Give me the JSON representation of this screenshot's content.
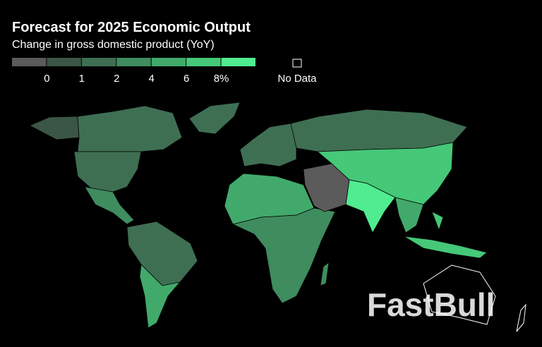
{
  "title": "Forecast for 2025 Economic Output",
  "subtitle": "Change in gross domestic product (YoY)",
  "legend": {
    "colors": [
      "#5b5b5b",
      "#3b5646",
      "#3f6f53",
      "#3f8c5f",
      "#41aa6b",
      "#45c878",
      "#50ec90"
    ],
    "ticks": [
      0,
      1,
      2,
      4,
      6,
      {
        "value": 8,
        "label": "8%"
      }
    ],
    "no_data_label": "No Data"
  },
  "watermark": "FastBull"
}
